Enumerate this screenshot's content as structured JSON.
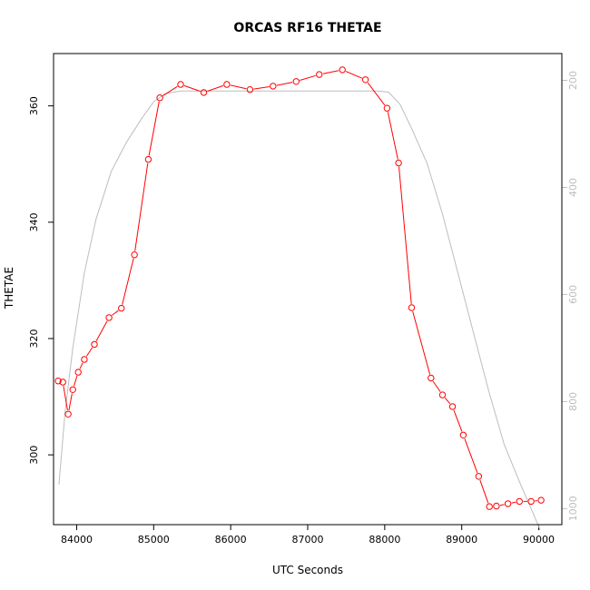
{
  "chart_data": {
    "type": "line",
    "title": "ORCAS RF16 THETAE",
    "xlabel": "UTC Seconds",
    "ylabel": "THETAE",
    "xlim": [
      83700,
      90300
    ],
    "ylim": [
      288,
      369
    ],
    "y2lim": [
      1030,
      150
    ],
    "y2_reversed": true,
    "x_ticks": [
      84000,
      85000,
      86000,
      87000,
      88000,
      89000,
      90000
    ],
    "y_ticks": [
      300,
      320,
      340,
      360
    ],
    "y2_ticks": [
      200,
      400,
      600,
      800,
      1000
    ],
    "grid": false,
    "series": [
      {
        "color": "#ff0000",
        "marker": "circle",
        "x": [
          83760,
          83820,
          83890,
          83950,
          84020,
          84100,
          84230,
          84420,
          84580,
          84750,
          84930,
          85080,
          85350,
          85650,
          85950,
          86250,
          86550,
          86850,
          87150,
          87450,
          87750,
          88030,
          88180,
          88350,
          88600,
          88750,
          88880,
          89020,
          89220,
          89360,
          89450,
          89600,
          89750,
          89900,
          90030
        ],
        "y": [
          312.7,
          312.5,
          307.0,
          311.2,
          314.2,
          316.4,
          319.0,
          323.6,
          325.2,
          334.4,
          350.8,
          361.4,
          363.7,
          362.3,
          363.7,
          362.8,
          363.4,
          364.2,
          365.4,
          366.2,
          364.5,
          359.6,
          350.2,
          325.3,
          313.2,
          310.3,
          308.3,
          303.4,
          296.3,
          291.1,
          291.2,
          291.6,
          292.0,
          292.0,
          292.2
        ]
      },
      {
        "color": "#bdbdbd",
        "axis": "right",
        "x": [
          83770,
          83850,
          83950,
          84100,
          84250,
          84450,
          84650,
          84850,
          85000,
          85150,
          85350,
          85700,
          86200,
          86800,
          87400,
          87900,
          88050,
          88200,
          88350,
          88550,
          88750,
          88950,
          89150,
          89350,
          89550,
          89750,
          89900,
          90020
        ],
        "y": [
          955,
          820,
          700,
          560,
          460,
          370,
          315,
          270,
          240,
          225,
          220,
          220,
          220,
          220,
          220,
          220,
          222,
          245,
          290,
          355,
          450,
          560,
          670,
          780,
          880,
          950,
          1000,
          1040
        ]
      }
    ]
  }
}
